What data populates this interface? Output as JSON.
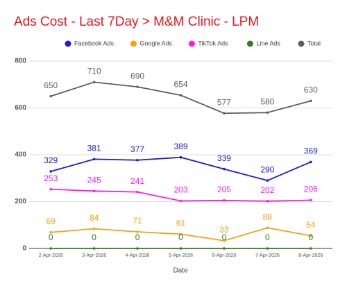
{
  "chart_data": {
    "type": "line",
    "title": "Ads Cost - Last 7Day > M&M Clinic - LPM",
    "x_label": "Date",
    "categories": [
      "2-Apr-2026",
      "3-Apr-2026",
      "4-Apr-2026",
      "5-Apr-2026",
      "6-Apr-2026",
      "7-Apr-2026",
      "8-Apr-2026"
    ],
    "series": [
      {
        "name": "Facebook Ads",
        "color": "#1c1cd9",
        "values": [
          329,
          381,
          377,
          389,
          339,
          290,
          369
        ]
      },
      {
        "name": "Google Ads",
        "color": "#f5a015",
        "values": [
          69,
          84,
          71,
          61,
          33,
          88,
          54
        ]
      },
      {
        "name": "TikTok Ads",
        "color": "#ff17f5",
        "values": [
          253,
          245,
          241,
          203,
          205,
          202,
          206
        ]
      },
      {
        "name": "Line Ads",
        "color": "#2e7d1f",
        "values": [
          0,
          0,
          0,
          0,
          0,
          0,
          0
        ]
      },
      {
        "name": "Total",
        "color": "#5f5f5f",
        "values": [
          650,
          710,
          690,
          654,
          577,
          580,
          630
        ]
      }
    ],
    "ylim": [
      0,
      800
    ],
    "yticks": [
      0,
      200,
      400,
      600,
      800
    ],
    "grid": true,
    "legend": "top"
  }
}
